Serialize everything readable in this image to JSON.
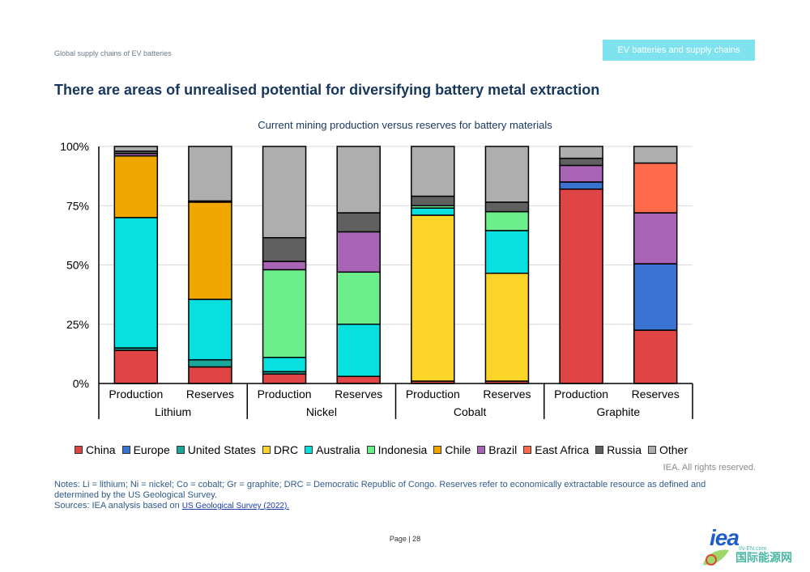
{
  "header": {
    "doc_title": "Global supply chains of EV batteries",
    "section_tab": "EV batteries and supply chains"
  },
  "heading": "There are areas of unrealised potential for diversifying battery metal extraction",
  "chart_data": {
    "type": "bar",
    "stacked": true,
    "title": "Current mining production versus reserves for battery materials",
    "xlabel": "",
    "ylabel": "",
    "ylim": [
      0,
      100
    ],
    "y_ticks": [
      "0%",
      "25%",
      "50%",
      "75%",
      "100%"
    ],
    "groups": [
      "Lithium",
      "Nickel",
      "Cobalt",
      "Graphite"
    ],
    "categories": [
      "Production",
      "Reserves",
      "Production",
      "Reserves",
      "Production",
      "Reserves",
      "Production",
      "Reserves"
    ],
    "series": [
      {
        "name": "China",
        "color": "#e04545",
        "values": [
          14,
          7,
          4,
          3,
          1,
          1,
          82,
          22.5
        ]
      },
      {
        "name": "Europe",
        "color": "#3a73d1",
        "values": [
          0,
          0,
          0,
          0,
          0,
          0,
          3,
          28
        ]
      },
      {
        "name": "United States",
        "color": "#18a89a",
        "values": [
          1,
          3,
          1,
          0,
          0,
          0,
          0,
          0
        ]
      },
      {
        "name": "DRC",
        "color": "#fcd52a",
        "values": [
          0,
          0,
          0,
          0,
          70,
          45.5,
          0,
          0
        ]
      },
      {
        "name": "Australia",
        "color": "#08e0e0",
        "values": [
          55,
          25.5,
          6,
          22,
          3,
          18,
          0,
          0
        ]
      },
      {
        "name": "Indonesia",
        "color": "#6cee8c",
        "values": [
          0,
          0,
          37,
          22,
          1,
          8,
          0,
          0
        ]
      },
      {
        "name": "Chile",
        "color": "#f0a800",
        "values": [
          26,
          41,
          0,
          0,
          0,
          0,
          0,
          0
        ]
      },
      {
        "name": "Brazil",
        "color": "#a865b5",
        "values": [
          1,
          0,
          3.5,
          17,
          0,
          0,
          7,
          21.5
        ]
      },
      {
        "name": "East Africa",
        "color": "#ff6a4d",
        "values": [
          0,
          0,
          0,
          0,
          0,
          0,
          0,
          21
        ]
      },
      {
        "name": "Russia",
        "color": "#606060",
        "values": [
          1,
          0.5,
          10,
          8,
          4,
          4,
          3,
          0
        ]
      },
      {
        "name": "Other",
        "color": "#aeaeae",
        "values": [
          2,
          23,
          38.5,
          28,
          21,
          23.5,
          5,
          7
        ]
      }
    ],
    "legend_position": "bottom",
    "grid": true
  },
  "credits": "IEA. All rights reserved.",
  "notes": {
    "line1": "Notes: Li = lithium; Ni = nickel; Co = cobalt; Gr = graphite; DRC = Democratic Republic of Congo. Reserves refer to economically extractable resource as defined and determined by the US Geological Survey.",
    "sources_prefix": "Sources: IEA analysis based on ",
    "sources_link": "US Geological Survey (2022)."
  },
  "footer": {
    "page": "Page | 28"
  },
  "logo": {
    "text": "iea",
    "watermark": "国际能源网",
    "watermark_sub": "IN-EN.com"
  }
}
